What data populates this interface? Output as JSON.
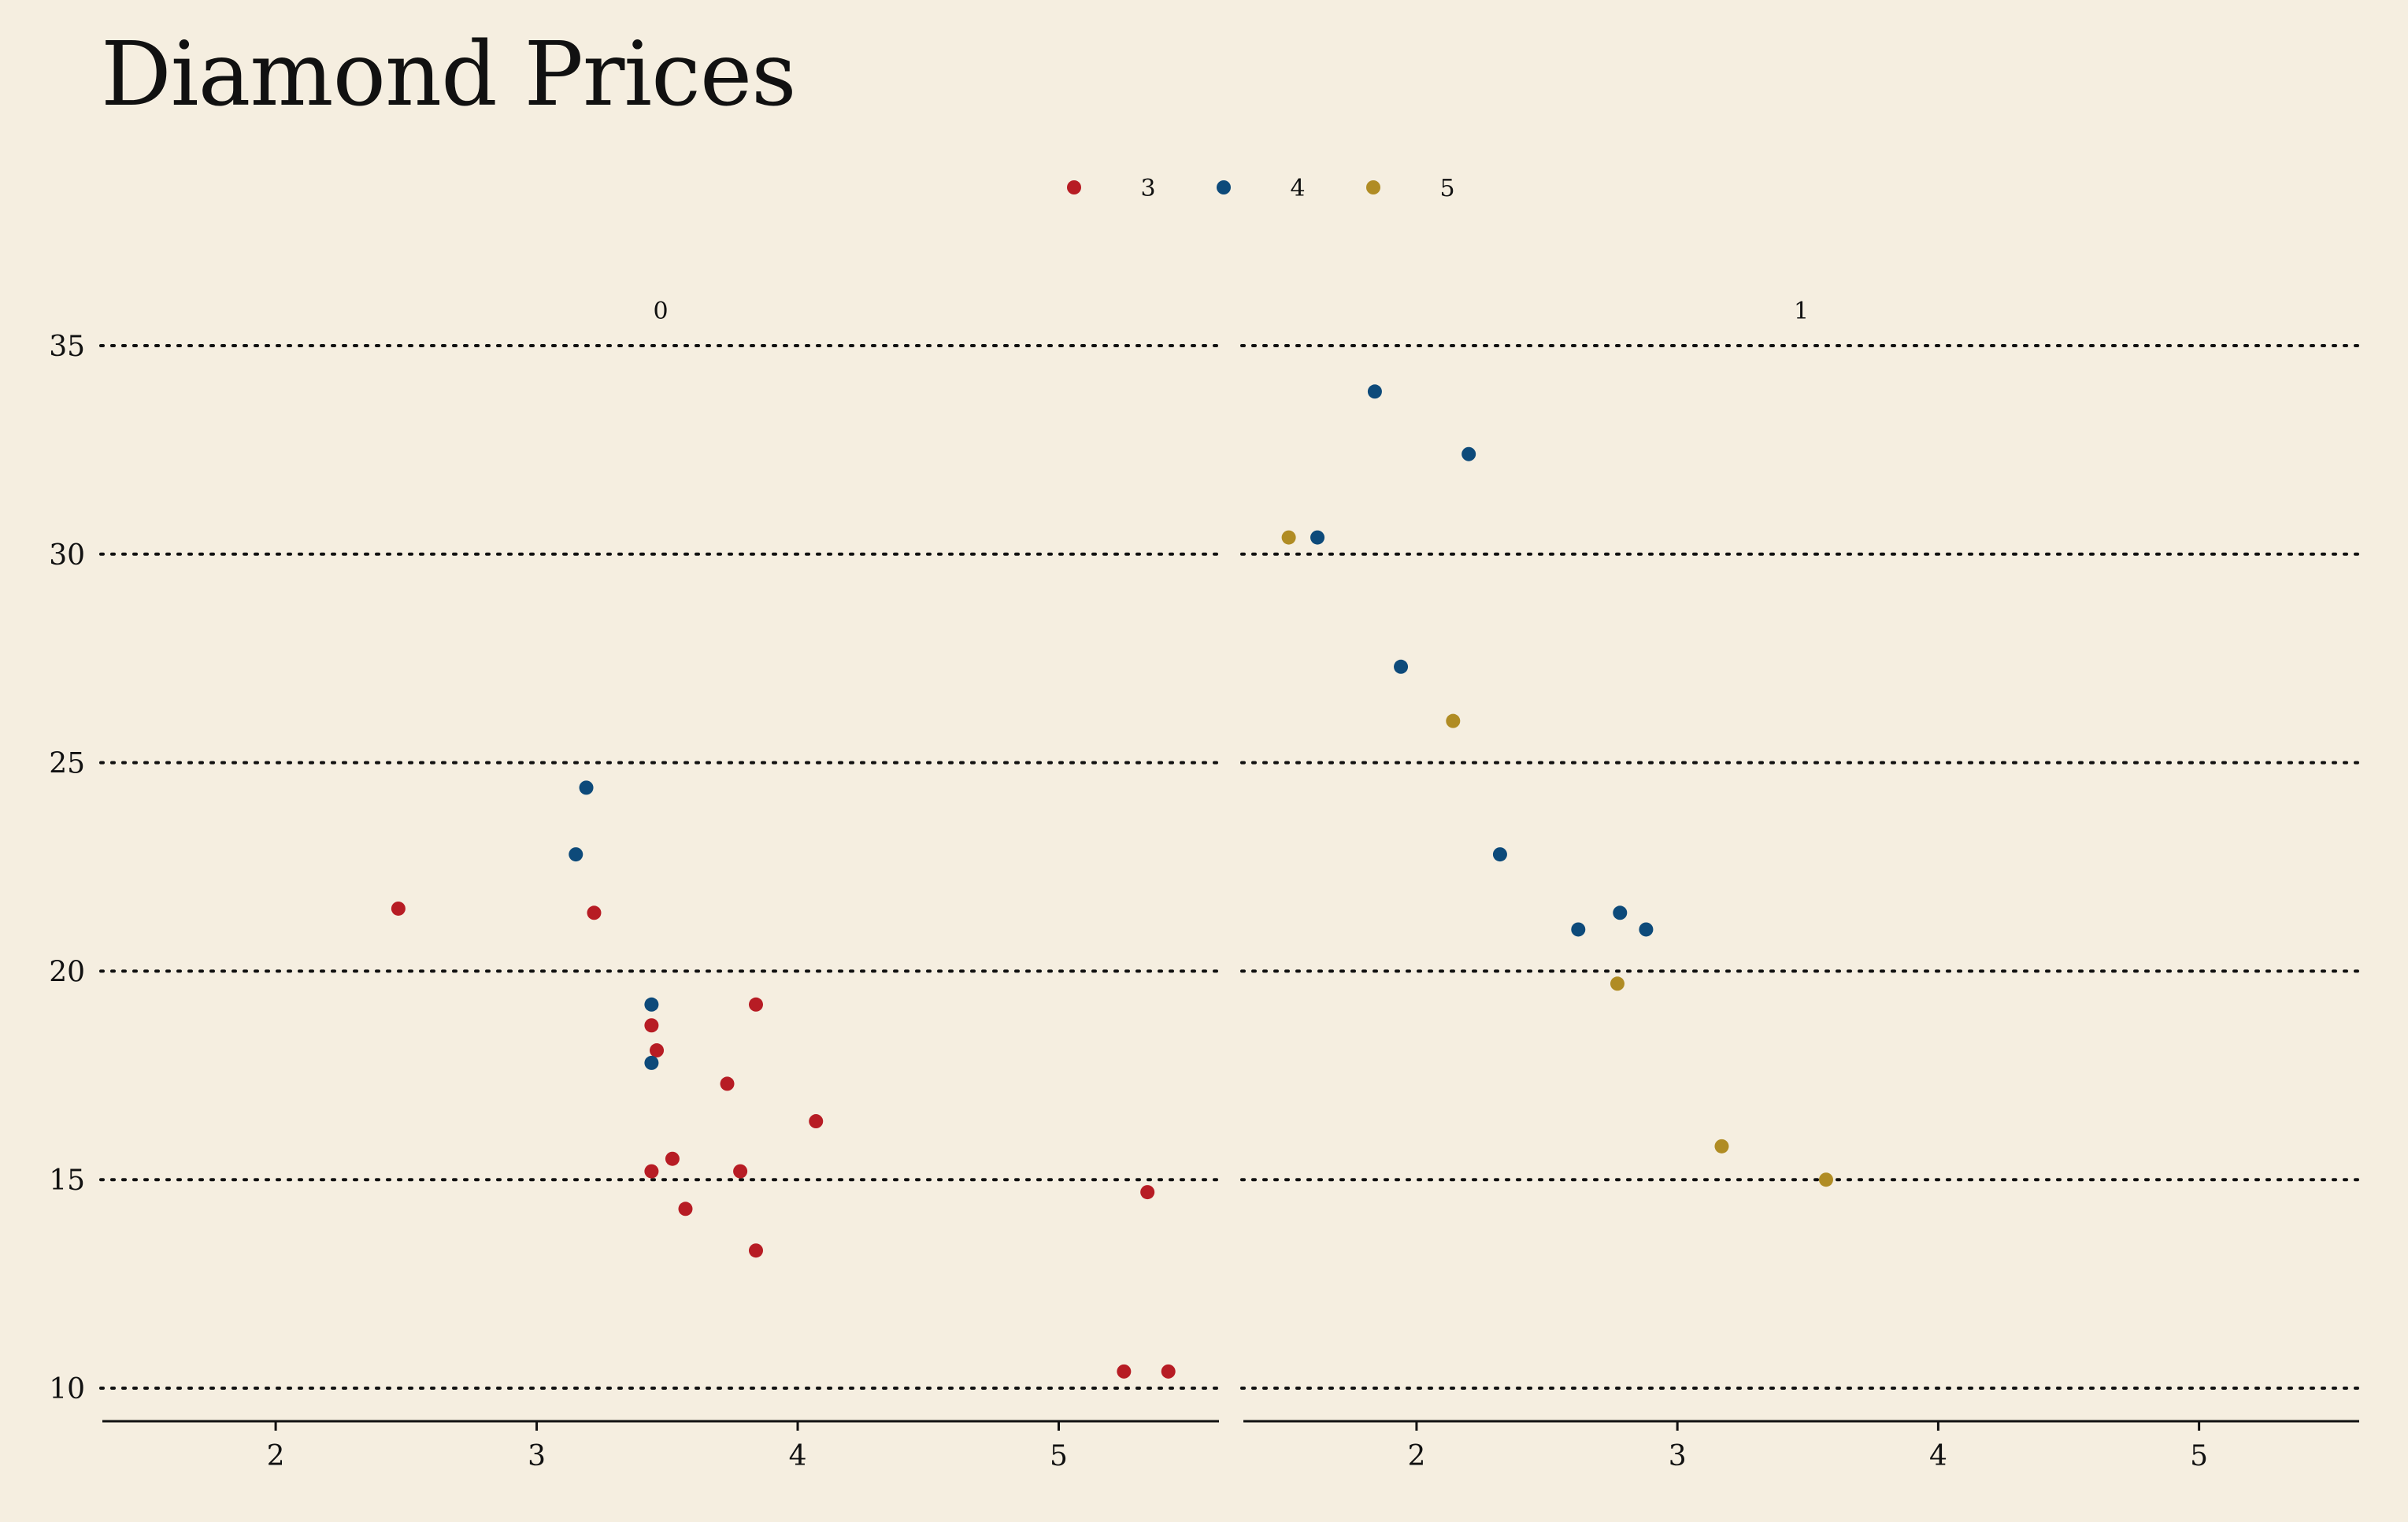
{
  "chart_data": {
    "type": "scatter",
    "title": "Diamond Prices",
    "xlabel": "",
    "ylabel": "",
    "ylim": [
      9.2,
      36.3
    ],
    "yticks": [
      10,
      15,
      20,
      25,
      30,
      35
    ],
    "xticks": [
      2,
      3,
      4,
      5
    ],
    "grid": "horizontal dotted",
    "legend": "top-center",
    "colors": {
      "3": "#b71c24",
      "4": "#0d4a7a",
      "5": "#b08c24"
    },
    "legend_entries": [
      "3",
      "4",
      "5"
    ],
    "facets": [
      {
        "label": "0",
        "xlim": [
          1.33,
          5.62
        ],
        "points": [
          {
            "x": 2.47,
            "y": 21.5,
            "g": "3"
          },
          {
            "x": 3.22,
            "y": 21.4,
            "g": "3"
          },
          {
            "x": 3.44,
            "y": 18.7,
            "g": "3"
          },
          {
            "x": 3.46,
            "y": 18.1,
            "g": "3"
          },
          {
            "x": 3.84,
            "y": 19.2,
            "g": "3"
          },
          {
            "x": 3.73,
            "y": 17.3,
            "g": "3"
          },
          {
            "x": 4.07,
            "y": 16.4,
            "g": "3"
          },
          {
            "x": 3.52,
            "y": 15.5,
            "g": "3"
          },
          {
            "x": 3.44,
            "y": 15.2,
            "g": "3"
          },
          {
            "x": 3.78,
            "y": 15.2,
            "g": "3"
          },
          {
            "x": 3.57,
            "y": 14.3,
            "g": "3"
          },
          {
            "x": 5.34,
            "y": 14.7,
            "g": "3"
          },
          {
            "x": 3.84,
            "y": 13.3,
            "g": "3"
          },
          {
            "x": 5.25,
            "y": 10.4,
            "g": "3"
          },
          {
            "x": 5.42,
            "y": 10.4,
            "g": "3"
          },
          {
            "x": 3.19,
            "y": 24.4,
            "g": "4"
          },
          {
            "x": 3.15,
            "y": 22.8,
            "g": "4"
          },
          {
            "x": 3.44,
            "y": 19.2,
            "g": "4"
          },
          {
            "x": 3.44,
            "y": 17.8,
            "g": "4"
          }
        ]
      },
      {
        "label": "1",
        "xlim": [
          1.33,
          5.62
        ],
        "points": [
          {
            "x": 1.84,
            "y": 33.9,
            "g": "4"
          },
          {
            "x": 2.2,
            "y": 32.4,
            "g": "4"
          },
          {
            "x": 1.62,
            "y": 30.4,
            "g": "4"
          },
          {
            "x": 1.94,
            "y": 27.3,
            "g": "4"
          },
          {
            "x": 2.32,
            "y": 22.8,
            "g": "4"
          },
          {
            "x": 2.62,
            "y": 21.0,
            "g": "4"
          },
          {
            "x": 2.78,
            "y": 21.4,
            "g": "4"
          },
          {
            "x": 2.88,
            "y": 21.0,
            "g": "4"
          },
          {
            "x": 1.51,
            "y": 30.4,
            "g": "5"
          },
          {
            "x": 2.14,
            "y": 26.0,
            "g": "5"
          },
          {
            "x": 2.77,
            "y": 19.7,
            "g": "5"
          },
          {
            "x": 3.17,
            "y": 15.8,
            "g": "5"
          },
          {
            "x": 3.57,
            "y": 15.0,
            "g": "5"
          }
        ]
      }
    ]
  }
}
